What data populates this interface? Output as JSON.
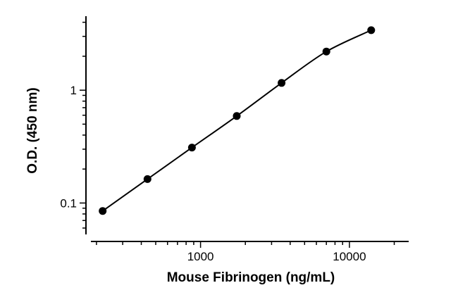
{
  "chart_data": {
    "type": "scatter",
    "title": "",
    "xlabel": "Mouse Fibrinogen (ng/mL)",
    "ylabel": "O.D. (450 nm)",
    "x_scale": "log",
    "y_scale": "log",
    "xlim": [
      170,
      25000
    ],
    "ylim": [
      0.055,
      4.4
    ],
    "x_tick_labels": [
      {
        "value": 1000,
        "label": "1000"
      },
      {
        "value": 10000,
        "label": "10000"
      }
    ],
    "y_tick_labels": [
      {
        "value": 0.1,
        "label": "0.1"
      },
      {
        "value": 1,
        "label": "1"
      }
    ],
    "series": [
      {
        "x": [
          220,
          440,
          875,
          1750,
          3500,
          7000,
          14000
        ],
        "y": [
          0.085,
          0.163,
          0.31,
          0.59,
          1.16,
          2.2,
          3.4
        ],
        "marker": "circle",
        "color": "#000000",
        "fit_curve": true
      }
    ],
    "grid": false,
    "legend": "none"
  }
}
